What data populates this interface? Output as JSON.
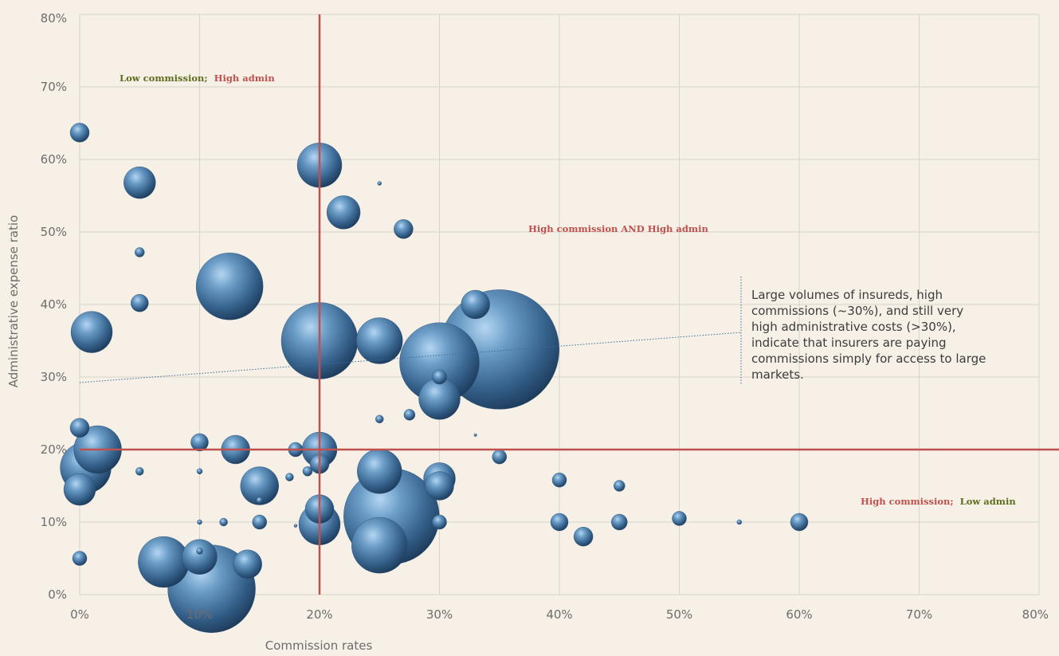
{
  "chart_data": {
    "type": "scatter",
    "xlabel": "Commission rates",
    "ylabel": "Administrative expense ratio",
    "xlim": [
      0,
      80
    ],
    "ylim": [
      0,
      80
    ],
    "x_ticks": [
      "0%",
      "10%",
      "20%",
      "30%",
      "40%",
      "50%",
      "60%",
      "70%",
      "80%"
    ],
    "y_ticks": [
      "0%",
      "10%",
      "20%",
      "30%",
      "40%",
      "50%",
      "60%",
      "70%",
      "80%"
    ],
    "grid": true,
    "threshold_lines": {
      "x": 20,
      "y": 20
    },
    "quadrant_labels": {
      "top_left": {
        "part1": "Low commission;",
        "part2": "High admin"
      },
      "top_right": {
        "text": "High commission AND High admin"
      },
      "bottom_right": {
        "part1": "High commission;",
        "part2": "Low admin"
      }
    },
    "annotation": "Large volumes of insureds, high commissions (~30%), and still very high administrative costs (>30%), indicate that insurers are paying commissions simply for access to large markets.",
    "colors": {
      "bubble": "#3b6e9c",
      "threshold": "#c0504d",
      "green_label": "#5f6e1e",
      "red_label": "#c0504d"
    },
    "points": [
      {
        "x": 0,
        "y": 63.7,
        "size": 1.2
      },
      {
        "x": 5,
        "y": 56.8,
        "size": 2.0
      },
      {
        "x": 5,
        "y": 47.2,
        "size": 0.6
      },
      {
        "x": 5,
        "y": 40.2,
        "size": 1.1
      },
      {
        "x": 1,
        "y": 36.2,
        "size": 2.6
      },
      {
        "x": 12.5,
        "y": 42.5,
        "size": 4.2
      },
      {
        "x": 20,
        "y": 59.2,
        "size": 2.8
      },
      {
        "x": 22,
        "y": 52.7,
        "size": 2.1
      },
      {
        "x": 25,
        "y": 56.7,
        "size": 0.25
      },
      {
        "x": 27,
        "y": 50.4,
        "size": 1.2
      },
      {
        "x": 20,
        "y": 35.0,
        "size": 4.8
      },
      {
        "x": 25,
        "y": 35.0,
        "size": 2.9
      },
      {
        "x": 33,
        "y": 40.0,
        "size": 1.8
      },
      {
        "x": 35,
        "y": 33.8,
        "size": 7.5
      },
      {
        "x": 30,
        "y": 32.0,
        "size": 5.0
      },
      {
        "x": 30,
        "y": 30.0,
        "size": 0.9
      },
      {
        "x": 30,
        "y": 27.0,
        "size": 2.6
      },
      {
        "x": 25,
        "y": 24.2,
        "size": 0.5
      },
      {
        "x": 27.5,
        "y": 24.8,
        "size": 0.7
      },
      {
        "x": 0,
        "y": 23.0,
        "size": 1.2
      },
      {
        "x": 1.5,
        "y": 20.0,
        "size": 3.0
      },
      {
        "x": 0.5,
        "y": 17.5,
        "size": 3.2
      },
      {
        "x": 0,
        "y": 14.5,
        "size": 2.0
      },
      {
        "x": 0,
        "y": 5.0,
        "size": 0.9
      },
      {
        "x": 5,
        "y": 17.0,
        "size": 0.5
      },
      {
        "x": 10,
        "y": 21.0,
        "size": 1.1
      },
      {
        "x": 10,
        "y": 17.0,
        "size": 0.35
      },
      {
        "x": 13,
        "y": 20.0,
        "size": 1.8
      },
      {
        "x": 15,
        "y": 15.0,
        "size": 2.4
      },
      {
        "x": 15,
        "y": 13.0,
        "size": 0.4
      },
      {
        "x": 15,
        "y": 10.0,
        "size": 0.9
      },
      {
        "x": 17.5,
        "y": 16.2,
        "size": 0.5
      },
      {
        "x": 18,
        "y": 20.0,
        "size": 0.9
      },
      {
        "x": 19,
        "y": 17.0,
        "size": 0.6
      },
      {
        "x": 20,
        "y": 20.0,
        "size": 2.2
      },
      {
        "x": 20,
        "y": 18.0,
        "size": 1.2
      },
      {
        "x": 20,
        "y": 11.8,
        "size": 1.8
      },
      {
        "x": 20,
        "y": 9.7,
        "size": 2.6
      },
      {
        "x": 18,
        "y": 9.5,
        "size": 0.2
      },
      {
        "x": 10,
        "y": 10.0,
        "size": 0.3
      },
      {
        "x": 12,
        "y": 10.0,
        "size": 0.5
      },
      {
        "x": 10,
        "y": 6.0,
        "size": 0.4
      },
      {
        "x": 10,
        "y": 5.2,
        "size": 2.2
      },
      {
        "x": 7,
        "y": 4.5,
        "size": 3.2
      },
      {
        "x": 14,
        "y": 4.2,
        "size": 1.8
      },
      {
        "x": 11,
        "y": 0.8,
        "size": 5.5
      },
      {
        "x": 25,
        "y": 17.0,
        "size": 2.8
      },
      {
        "x": 26,
        "y": 10.8,
        "size": 6.0
      },
      {
        "x": 25,
        "y": 6.8,
        "size": 3.5
      },
      {
        "x": 30,
        "y": 16.0,
        "size": 2.0
      },
      {
        "x": 30,
        "y": 15.0,
        "size": 1.8
      },
      {
        "x": 30,
        "y": 10.0,
        "size": 0.9
      },
      {
        "x": 35,
        "y": 19.0,
        "size": 0.9
      },
      {
        "x": 33,
        "y": 22.0,
        "size": 0.15
      },
      {
        "x": 40,
        "y": 15.8,
        "size": 0.9
      },
      {
        "x": 40,
        "y": 10.0,
        "size": 1.1
      },
      {
        "x": 42,
        "y": 8.0,
        "size": 1.2
      },
      {
        "x": 45,
        "y": 15.0,
        "size": 0.7
      },
      {
        "x": 45,
        "y": 10.0,
        "size": 1.0
      },
      {
        "x": 50,
        "y": 10.5,
        "size": 0.9
      },
      {
        "x": 55,
        "y": 10.0,
        "size": 0.3
      },
      {
        "x": 60,
        "y": 10.0,
        "size": 1.1
      }
    ]
  }
}
